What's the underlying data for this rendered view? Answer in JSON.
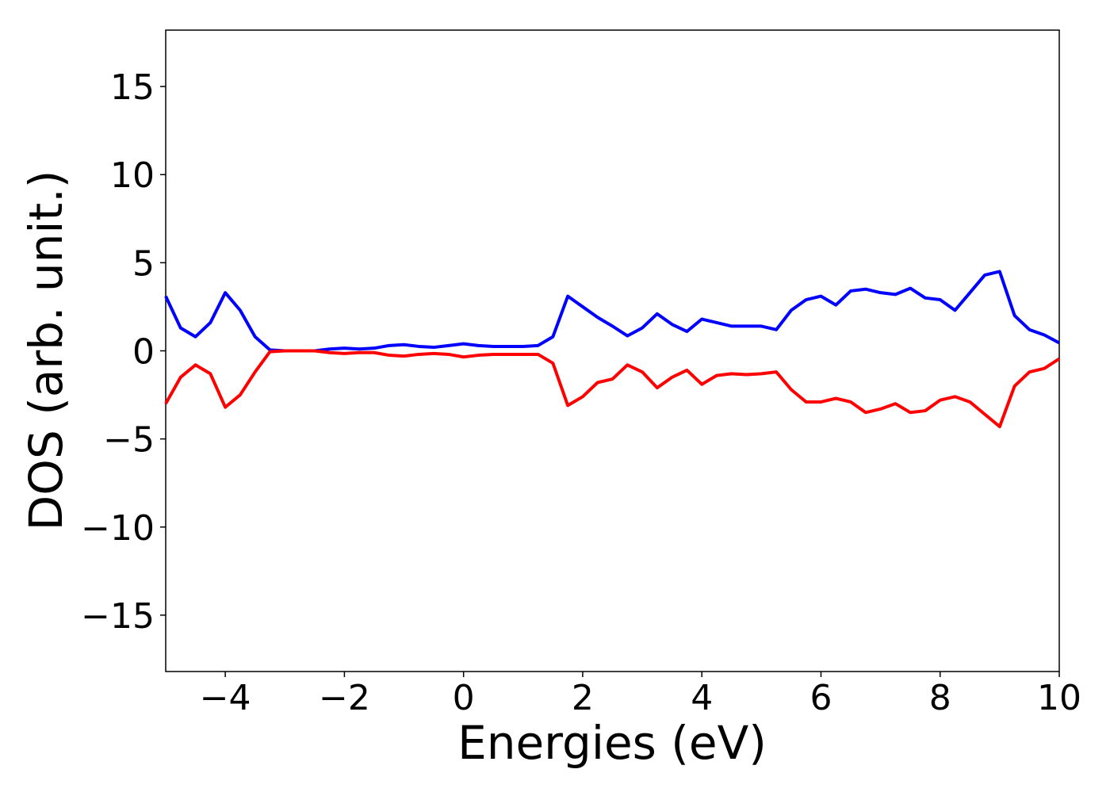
{
  "chart_data": {
    "type": "line",
    "xlabel": "Energies (eV)",
    "ylabel": "DOS (arb. unit.)",
    "x": [
      -5,
      -4.75,
      -4.5,
      -4.25,
      -4,
      -3.75,
      -3.5,
      -3.25,
      -3,
      -2.75,
      -2.5,
      -2.25,
      -2,
      -1.75,
      -1.5,
      -1.25,
      -1,
      -0.75,
      -0.5,
      -0.25,
      0,
      0.25,
      0.5,
      0.75,
      1,
      1.25,
      1.5,
      1.75,
      2,
      2.25,
      2.5,
      2.75,
      3,
      3.25,
      3.5,
      3.75,
      4,
      4.25,
      4.5,
      4.75,
      5,
      5.25,
      5.5,
      5.75,
      6,
      6.25,
      6.5,
      6.75,
      7,
      7.25,
      7.5,
      7.75,
      8,
      8.25,
      8.5,
      8.75,
      9,
      9.25,
      9.5,
      9.75,
      10
    ],
    "series": [
      {
        "color": "#0000ff",
        "values": [
          3.1,
          1.3,
          0.8,
          1.6,
          3.3,
          2.3,
          0.8,
          0.05,
          0,
          0,
          0,
          0.1,
          0.15,
          0.1,
          0.15,
          0.3,
          0.35,
          0.25,
          0.2,
          0.3,
          0.4,
          0.3,
          0.25,
          0.25,
          0.25,
          0.3,
          0.8,
          3.1,
          2.5,
          1.9,
          1.4,
          0.85,
          1.3,
          2.1,
          1.5,
          1.1,
          1.8,
          1.6,
          1.4,
          1.4,
          1.4,
          1.2,
          2.3,
          2.9,
          3.1,
          2.6,
          3.4,
          3.5,
          3.3,
          3.2,
          3.55,
          3.0,
          2.9,
          2.3,
          3.3,
          4.3,
          4.5,
          2.0,
          1.2,
          0.9,
          0.45
        ]
      },
      {
        "color": "#ff0000",
        "values": [
          -3.0,
          -1.5,
          -0.8,
          -1.3,
          -3.2,
          -2.5,
          -1.2,
          -0.05,
          0,
          0,
          0,
          -0.1,
          -0.15,
          -0.1,
          -0.1,
          -0.25,
          -0.3,
          -0.2,
          -0.15,
          -0.2,
          -0.35,
          -0.25,
          -0.2,
          -0.2,
          -0.2,
          -0.2,
          -0.7,
          -3.1,
          -2.6,
          -1.8,
          -1.6,
          -0.8,
          -1.2,
          -2.1,
          -1.5,
          -1.1,
          -1.9,
          -1.4,
          -1.3,
          -1.35,
          -1.3,
          -1.2,
          -2.2,
          -2.9,
          -2.9,
          -2.7,
          -2.9,
          -3.5,
          -3.3,
          -3.0,
          -3.5,
          -3.4,
          -2.8,
          -2.6,
          -2.9,
          -3.6,
          -4.3,
          -2.0,
          -1.2,
          -1.0,
          -0.45
        ]
      }
    ],
    "xlim": [
      -5,
      10
    ],
    "xticks": [
      {
        "value": -4,
        "label": "−4"
      },
      {
        "value": -2,
        "label": "−2"
      },
      0,
      2,
      4,
      6,
      8,
      10
    ],
    "ylim": [
      -18.2,
      18.2
    ],
    "yticks": [
      {
        "value": -15,
        "label": "−15"
      },
      {
        "value": -10,
        "label": "−10"
      },
      {
        "value": -5,
        "label": "−5"
      },
      0,
      5,
      10,
      15
    ]
  }
}
